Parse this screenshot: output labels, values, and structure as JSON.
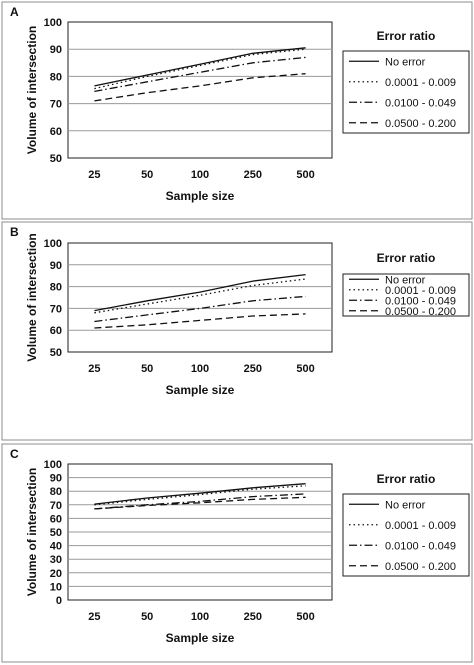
{
  "chart_data": [
    {
      "panel": "A",
      "type": "line",
      "xlabel": "Sample size",
      "ylabel": "Volume of intersection",
      "legend_title": "Error ratio",
      "legend_position": "right",
      "grid": true,
      "ylim": [
        50,
        100
      ],
      "yticks": [
        50,
        60,
        70,
        80,
        90,
        100
      ],
      "categories": [
        "25",
        "50",
        "100",
        "250",
        "500"
      ],
      "series": [
        {
          "name": "No error",
          "dash": "solid",
          "values": [
            76.5,
            80.5,
            84.5,
            88.5,
            90.5
          ]
        },
        {
          "name": "0.0001 - 0.009",
          "dash": "dotted",
          "values": [
            75.5,
            80,
            84,
            88,
            90
          ]
        },
        {
          "name": "0.0100 - 0.049",
          "dash": "dashdot",
          "values": [
            74.5,
            78,
            81.5,
            85,
            87
          ]
        },
        {
          "name": "0.0500 - 0.200",
          "dash": "dashed",
          "values": [
            71,
            74,
            76.5,
            79.5,
            81
          ]
        }
      ]
    },
    {
      "panel": "B",
      "type": "line",
      "xlabel": "Sample size",
      "ylabel": "Volume of intersection",
      "legend_title": "Error ratio",
      "legend_position": "right",
      "grid": true,
      "ylim": [
        50,
        100
      ],
      "yticks": [
        50,
        60,
        70,
        80,
        90,
        100
      ],
      "categories": [
        "25",
        "50",
        "100",
        "250",
        "500"
      ],
      "series": [
        {
          "name": "No error",
          "dash": "solid",
          "values": [
            69,
            73.5,
            77.5,
            82.5,
            85.5
          ]
        },
        {
          "name": "0.0001 - 0.009",
          "dash": "dotted",
          "values": [
            68,
            72,
            76,
            80.5,
            83.5
          ]
        },
        {
          "name": "0.0100 - 0.049",
          "dash": "dashdot",
          "values": [
            64,
            67,
            70,
            73.5,
            75.5
          ]
        },
        {
          "name": "0.0500 - 0.200",
          "dash": "dashed",
          "values": [
            61,
            62.5,
            64.5,
            66.5,
            67.5
          ]
        }
      ]
    },
    {
      "panel": "C",
      "type": "line",
      "xlabel": "Sample size",
      "ylabel": "Volume of intersection",
      "legend_title": "Error ratio",
      "legend_position": "right",
      "grid": true,
      "ylim": [
        0,
        100
      ],
      "yticks": [
        0,
        10,
        20,
        30,
        40,
        50,
        60,
        70,
        80,
        90,
        100
      ],
      "categories": [
        "25",
        "50",
        "100",
        "250",
        "500"
      ],
      "series": [
        {
          "name": "No error",
          "dash": "solid",
          "values": [
            70.5,
            75,
            78.5,
            82.5,
            85.5
          ]
        },
        {
          "name": "0.0001 - 0.009",
          "dash": "dotted",
          "values": [
            70,
            74,
            77.5,
            81.5,
            84
          ]
        },
        {
          "name": "0.0100 - 0.049",
          "dash": "dashdot",
          "values": [
            67,
            70,
            72.5,
            76,
            78
          ]
        },
        {
          "name": "0.0500 - 0.200",
          "dash": "dashed",
          "values": [
            67,
            69.5,
            71.5,
            74,
            75.5
          ]
        }
      ]
    }
  ]
}
